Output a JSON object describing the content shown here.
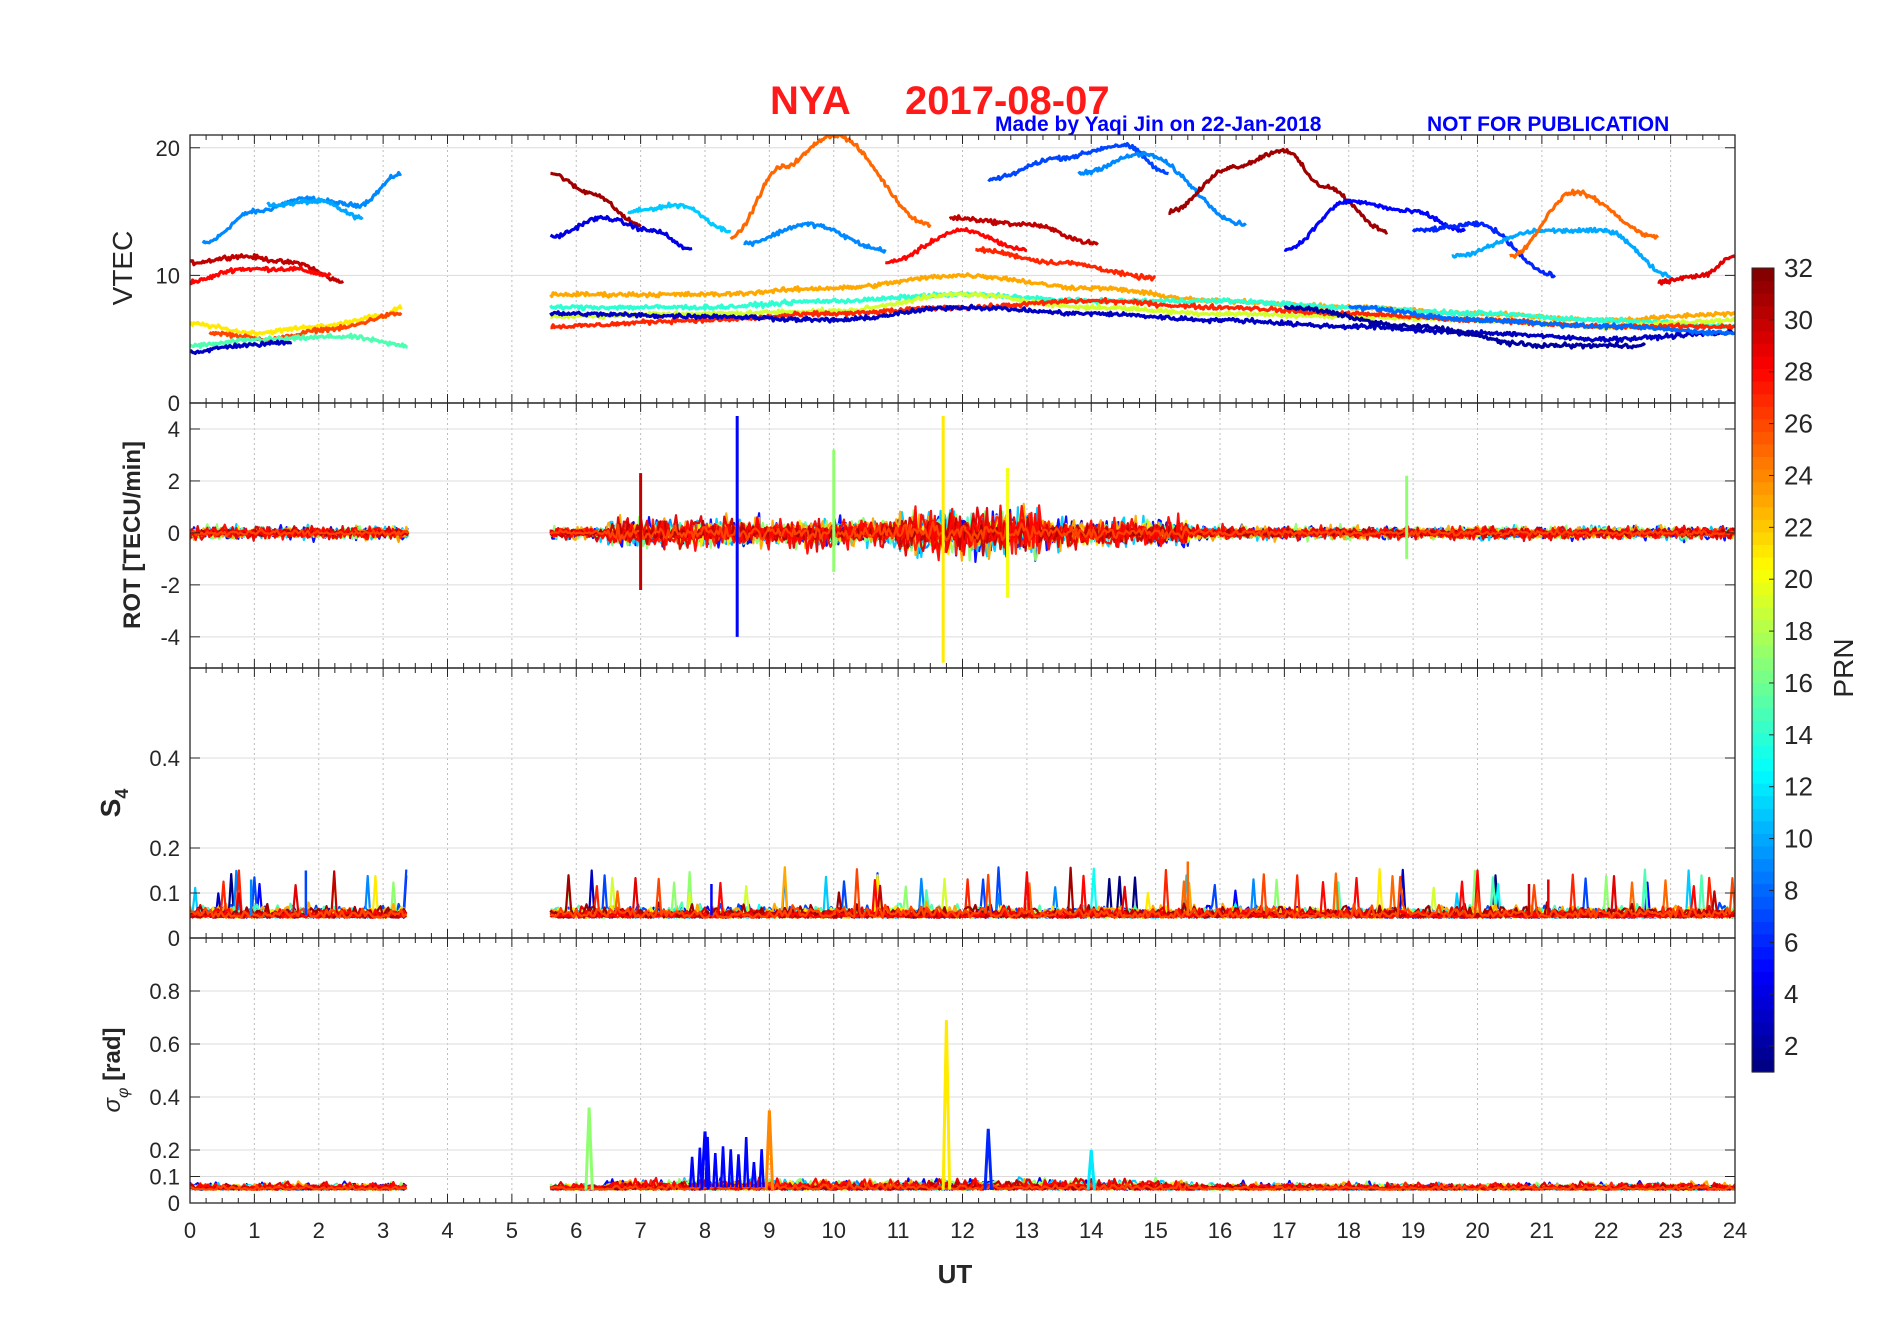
{
  "header": {
    "station": "NYA",
    "date": "2017-08-07",
    "credit": "Made by Yaqi Jin on 22-Jan-2018",
    "notice": "NOT FOR PUBLICATION"
  },
  "colors": {
    "title": "#ff1a1a",
    "credit": "#0000ff",
    "axis": "#262626",
    "grid": "#d9d9d9"
  },
  "chart_data": [
    {
      "type": "line",
      "panel": "vtec",
      "ylabel": "VTEC",
      "ylim": [
        0,
        21
      ],
      "yticks": [
        0,
        10,
        20
      ],
      "xlim": [
        0,
        24
      ],
      "series": [
        {
          "prn": 9,
          "x": [
            0.2,
            1,
            1.8,
            2.6,
            3.3
          ],
          "y": [
            12.5,
            15,
            16,
            15.5,
            18
          ]
        },
        {
          "prn": 10,
          "x": [
            1.2,
            2,
            2.7
          ],
          "y": [
            15.5,
            15.8,
            14.5
          ]
        },
        {
          "prn": 30,
          "x": [
            0,
            0.8,
            1.6,
            2.4
          ],
          "y": [
            11,
            11.5,
            11,
            9.5
          ]
        },
        {
          "prn": 28,
          "x": [
            0,
            0.8,
            1.6,
            2.2
          ],
          "y": [
            9.5,
            10.5,
            10.5,
            10
          ]
        },
        {
          "prn": 21,
          "x": [
            0,
            1,
            2,
            3,
            3.3
          ],
          "y": [
            6.2,
            5.5,
            6,
            6.8,
            7.5
          ]
        },
        {
          "prn": 26,
          "x": [
            0.3,
            1.2,
            2.2,
            3.3
          ],
          "y": [
            5.5,
            5,
            5.8,
            7
          ]
        },
        {
          "prn": 15,
          "x": [
            0,
            1.2,
            2.4,
            3.4
          ],
          "y": [
            4.5,
            5,
            5.2,
            4.5
          ]
        },
        {
          "prn": 3,
          "x": [
            0,
            0.8,
            1.6
          ],
          "y": [
            4,
            4.5,
            4.8
          ]
        },
        {
          "prn": 31,
          "x": [
            5.6,
            6.2,
            7
          ],
          "y": [
            18,
            16.5,
            14
          ]
        },
        {
          "prn": 4,
          "x": [
            5.6,
            6.4,
            7.2,
            7.8
          ],
          "y": [
            13,
            14.5,
            13.5,
            12
          ]
        },
        {
          "prn": 11,
          "x": [
            6.8,
            7.6,
            8.4
          ],
          "y": [
            15,
            15.5,
            13.5
          ]
        },
        {
          "prn": 25,
          "x": [
            8.4,
            9.2,
            10,
            11.5
          ],
          "y": [
            13,
            18.5,
            21,
            14
          ]
        },
        {
          "prn": 9,
          "x": [
            8.6,
            9.6,
            10.8
          ],
          "y": [
            12.5,
            14,
            12
          ]
        },
        {
          "prn": 28,
          "x": [
            10.8,
            12,
            13
          ],
          "y": [
            11,
            13.5,
            12
          ]
        },
        {
          "prn": 30,
          "x": [
            11.8,
            13,
            14.1
          ],
          "y": [
            14.5,
            14,
            12.5
          ]
        },
        {
          "prn": 27,
          "x": [
            12.2,
            13.5,
            15
          ],
          "y": [
            12,
            11,
            9.8
          ]
        },
        {
          "prn": 7,
          "x": [
            12.4,
            13.5,
            14.5,
            15.2
          ],
          "y": [
            17.5,
            19.2,
            20.2,
            18
          ]
        },
        {
          "prn": 9,
          "x": [
            13.8,
            14.8,
            16.4
          ],
          "y": [
            18,
            19.5,
            14
          ]
        },
        {
          "prn": 31,
          "x": [
            15.2,
            16.2,
            17,
            17.6,
            18.6
          ],
          "y": [
            15,
            18.5,
            19.8,
            17,
            13.5
          ]
        },
        {
          "prn": 5,
          "x": [
            17,
            18,
            19,
            19.8
          ],
          "y": [
            12,
            15.8,
            15,
            13.5
          ]
        },
        {
          "prn": 6,
          "x": [
            19,
            20,
            21.2
          ],
          "y": [
            13.5,
            14,
            10
          ]
        },
        {
          "prn": 10,
          "x": [
            19.6,
            21,
            22,
            23
          ],
          "y": [
            11.5,
            13.5,
            13.5,
            10
          ]
        },
        {
          "prn": 25,
          "x": [
            20.5,
            21.5,
            22.8
          ],
          "y": [
            11.5,
            16.5,
            13
          ]
        },
        {
          "prn": 29,
          "x": [
            22.8,
            23.5,
            24
          ],
          "y": [
            9.5,
            10,
            11.5
          ]
        },
        {
          "prn": 23,
          "x": [
            5.6,
            8,
            10,
            12,
            14,
            16,
            18,
            20,
            22,
            24
          ],
          "y": [
            8.5,
            8.5,
            9,
            10,
            9,
            8,
            7.5,
            7,
            6.5,
            7
          ]
        },
        {
          "prn": 14,
          "x": [
            5.6,
            8,
            10,
            12,
            14,
            16,
            18,
            20,
            22,
            24
          ],
          "y": [
            7.5,
            7.5,
            8,
            8.5,
            8,
            8,
            7.5,
            7,
            6.5,
            6
          ]
        },
        {
          "prn": 19,
          "x": [
            5.6,
            8,
            10,
            12,
            14,
            16,
            18,
            20,
            22,
            24
          ],
          "y": [
            6.8,
            7,
            7.2,
            8.5,
            7.5,
            7,
            6.8,
            6.5,
            6,
            6.5
          ]
        },
        {
          "prn": 27,
          "x": [
            5.6,
            8,
            10,
            12,
            14,
            16,
            18,
            20,
            22,
            24
          ],
          "y": [
            6,
            6.5,
            7,
            7.5,
            8,
            7.5,
            7,
            6.5,
            6,
            6
          ]
        },
        {
          "prn": 3,
          "x": [
            5.6,
            8,
            10,
            12,
            14,
            16,
            18,
            20,
            22,
            24
          ],
          "y": [
            7,
            6.8,
            6.5,
            7.5,
            7,
            6.5,
            6,
            5.5,
            5,
            5.5
          ]
        },
        {
          "prn": 2,
          "x": [
            17,
            19,
            21,
            22.6
          ],
          "y": [
            7.5,
            6,
            4.5,
            4.5
          ]
        },
        {
          "prn": 8,
          "x": [
            18,
            20,
            22,
            24
          ],
          "y": [
            7.5,
            6.5,
            6,
            5.5
          ]
        }
      ]
    },
    {
      "type": "line",
      "panel": "rot",
      "ylabel": "ROT [TECU/min]",
      "ylim": [
        -5.2,
        5
      ],
      "yticks": [
        -4,
        -2,
        0,
        2,
        4
      ],
      "xlim": [
        0,
        24
      ],
      "spikes": [
        {
          "prn": 5,
          "x": 8.5,
          "y": [
            -4,
            4.5
          ]
        },
        {
          "prn": 21,
          "x": 11.7,
          "y": [
            -5,
            4.5
          ]
        },
        {
          "prn": 30,
          "x": 7.0,
          "y": [
            -2.2,
            2.3
          ]
        },
        {
          "prn": 17,
          "x": 10.0,
          "y": [
            -1.5,
            3.2
          ]
        },
        {
          "prn": 20,
          "x": 12.7,
          "y": [
            -2.5,
            2.5
          ]
        },
        {
          "prn": 17,
          "x": 18.9,
          "y": [
            -1,
            2.2
          ]
        }
      ]
    },
    {
      "type": "line",
      "panel": "s4",
      "ylabel": "S4",
      "ylim": [
        0,
        0.6
      ],
      "yticks": [
        0,
        0.1,
        0.2,
        0.4
      ],
      "xlim": [
        0,
        24
      ]
    },
    {
      "type": "line",
      "panel": "sigma_phi",
      "ylabel": "σφ [rad]",
      "ylim": [
        0,
        1
      ],
      "yticks": [
        0,
        0.1,
        0.2,
        0.4,
        0.6,
        0.8
      ],
      "xlim": [
        0,
        24
      ],
      "peaks": [
        {
          "prn": 17,
          "x": 6.2,
          "y": 0.36
        },
        {
          "prn": 5,
          "x": 8.0,
          "y": 0.27
        },
        {
          "prn": 24,
          "x": 9.0,
          "y": 0.35
        },
        {
          "prn": 21,
          "x": 11.75,
          "y": 0.69
        },
        {
          "prn": 6,
          "x": 12.4,
          "y": 0.28
        },
        {
          "prn": 12,
          "x": 14.0,
          "y": 0.2
        }
      ]
    }
  ],
  "xaxis": {
    "label": "UT",
    "ticks": [
      "0",
      "1",
      "2",
      "3",
      "4",
      "5",
      "6",
      "7",
      "8",
      "9",
      "10",
      "11",
      "12",
      "13",
      "14",
      "15",
      "16",
      "17",
      "18",
      "19",
      "20",
      "21",
      "22",
      "23",
      "24"
    ]
  },
  "colorbar": {
    "label": "PRN",
    "ticks": [
      "2",
      "4",
      "6",
      "8",
      "10",
      "12",
      "14",
      "16",
      "18",
      "20",
      "22",
      "24",
      "26",
      "28",
      "30",
      "32"
    ],
    "range": [
      1,
      32
    ]
  }
}
